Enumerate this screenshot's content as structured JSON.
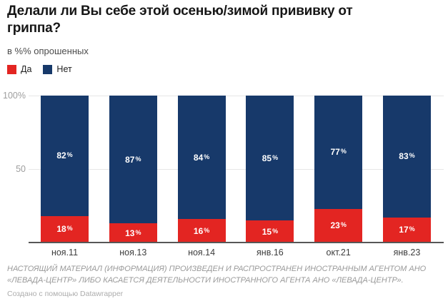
{
  "chart_data": {
    "type": "bar",
    "stacked": true,
    "title": "Делали ли Вы себе этой осенью/зимой прививку от гриппа?",
    "subtitle": "в %% опрошенных",
    "categories": [
      "ноя.11",
      "ноя.13",
      "ноя.14",
      "янв.16",
      "окт.21",
      "янв.23"
    ],
    "series": [
      {
        "name": "Да",
        "color": "#e32522",
        "values": [
          18,
          13,
          16,
          15,
          23,
          17
        ]
      },
      {
        "name": "Нет",
        "color": "#17396a",
        "values": [
          82,
          87,
          84,
          85,
          77,
          83
        ]
      }
    ],
    "value_suffix": "%",
    "ylim": [
      0,
      100
    ],
    "yticks": [
      {
        "value": 100,
        "label": "100%"
      },
      {
        "value": 50,
        "label": "50"
      }
    ],
    "grid": true,
    "legend_position": "top-left",
    "xlabel": "",
    "ylabel": ""
  },
  "footer": {
    "disclaimer": "НАСТОЯЩИЙ МАТЕРИАЛ (ИНФОРМАЦИЯ) ПРОИЗВЕДЕН И РАСПРОСТРАНЕН ИНОСТРАННЫМ АГЕНТОМ АНО «ЛЕВАДА-ЦЕНТР» ЛИБО КАСАЕТСЯ ДЕЯТЕЛЬНОСТИ ИНОСТРАННОГО АГЕНТА АНО «ЛЕВАДА-ЦЕНТР».",
    "attribution": "Создано с помощью Datawrapper"
  }
}
